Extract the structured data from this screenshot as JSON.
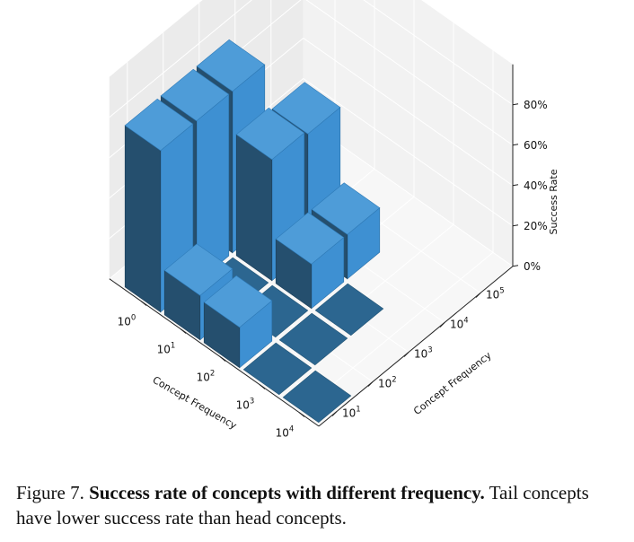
{
  "chart_data": {
    "type": "bar3d",
    "x_axis": {
      "label": "Concept Frequency",
      "ticks": [
        "10^0",
        "10^1",
        "10^2",
        "10^3",
        "10^4"
      ],
      "ticks_base": "10",
      "ticks_exp": [
        "0",
        "1",
        "2",
        "3",
        "4"
      ]
    },
    "y_axis": {
      "label": "Concept Frequency",
      "ticks_base": "10",
      "ticks_exp": [
        "1",
        "2",
        "3",
        "4",
        "5"
      ]
    },
    "z_axis": {
      "label": "Success Rate",
      "ticks": [
        "0%",
        "20%",
        "40%",
        "60%",
        "80%"
      ],
      "zlim": [
        0,
        80
      ]
    },
    "bar_color": "#3a8fd1",
    "bars": [
      {
        "x": 0,
        "y": 0,
        "value": 0
      },
      {
        "x": 1,
        "y": 0,
        "value": 0
      },
      {
        "x": 1,
        "y": 1,
        "value": 0
      },
      {
        "x": 1,
        "y": 2,
        "value": 0
      },
      {
        "x": 2,
        "y": 0,
        "value": 20
      },
      {
        "x": 2,
        "y": 1,
        "value": 0
      },
      {
        "x": 2,
        "y": 2,
        "value": 22
      },
      {
        "x": 2,
        "y": 3,
        "value": 22
      },
      {
        "x": 3,
        "y": 0,
        "value": 22
      },
      {
        "x": 3,
        "y": 1,
        "value": 0
      },
      {
        "x": 3,
        "y": 2,
        "value": 60
      },
      {
        "x": 3,
        "y": 3,
        "value": 58
      },
      {
        "x": 4,
        "y": 0,
        "value": 80
      },
      {
        "x": 4,
        "y": 1,
        "value": 80
      },
      {
        "x": 4,
        "y": 2,
        "value": 80
      }
    ]
  },
  "caption": {
    "label": "Figure 7.",
    "bold": "Success rate of concepts with different frequency.",
    "text": "Tail concepts have lower success rate than head concepts."
  }
}
